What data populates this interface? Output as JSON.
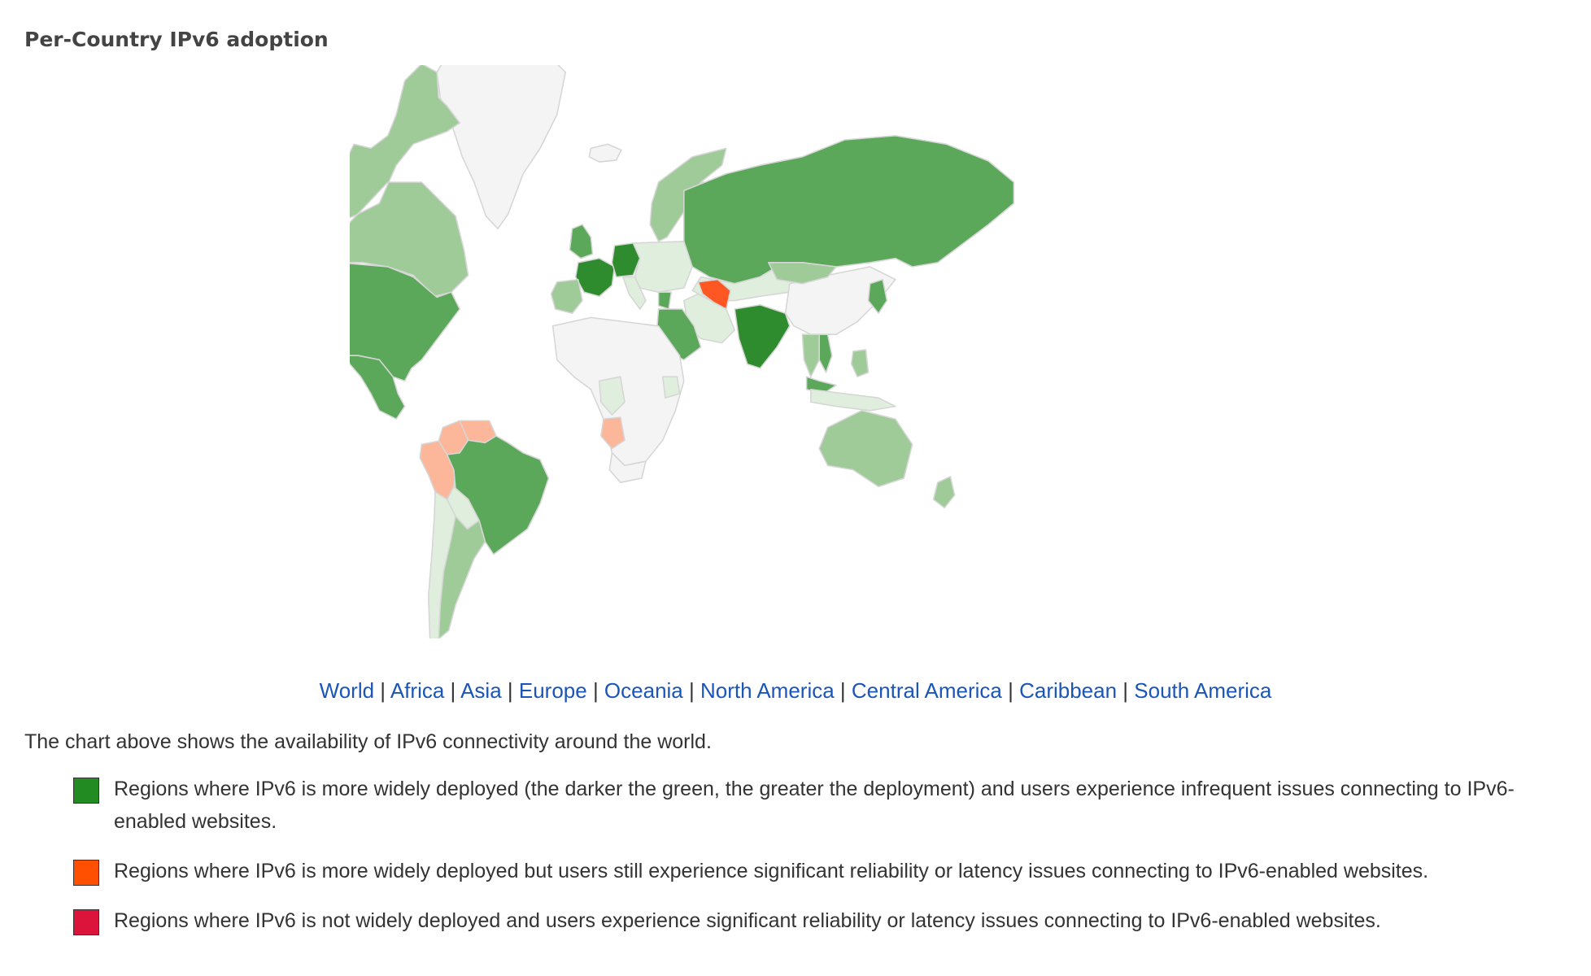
{
  "page": {
    "title": "Per-Country IPv6 adoption"
  },
  "map": {
    "colors": {
      "ocean": "#ffffff",
      "no_data": "#f4f4f4",
      "border": "#d6d6d6",
      "green_low": "#dfeedd",
      "green_mid": "#9fcb98",
      "green_high": "#5ba85a",
      "green_top": "#2e8b2e",
      "orange": "#fe5722",
      "orange_light": "#fcb69a",
      "red": "#dc143c"
    },
    "regions": [
      {
        "name": "Greenland",
        "level": "none"
      },
      {
        "name": "Canada",
        "level": "mid"
      },
      {
        "name": "Alaska",
        "level": "mid"
      },
      {
        "name": "United States",
        "level": "high"
      },
      {
        "name": "Mexico",
        "level": "high"
      },
      {
        "name": "Colombia",
        "level": "orange_light"
      },
      {
        "name": "Venezuela",
        "level": "orange_light"
      },
      {
        "name": "Peru",
        "level": "orange_light"
      },
      {
        "name": "Brazil",
        "level": "high"
      },
      {
        "name": "Bolivia",
        "level": "low"
      },
      {
        "name": "Argentina",
        "level": "mid"
      },
      {
        "name": "Chile",
        "level": "low"
      },
      {
        "name": "Iceland",
        "level": "none"
      },
      {
        "name": "Norway",
        "level": "mid"
      },
      {
        "name": "Sweden",
        "level": "mid"
      },
      {
        "name": "Finland",
        "level": "high"
      },
      {
        "name": "United Kingdom",
        "level": "high"
      },
      {
        "name": "France",
        "level": "top"
      },
      {
        "name": "Germany",
        "level": "top"
      },
      {
        "name": "Spain",
        "level": "mid"
      },
      {
        "name": "Italy",
        "level": "low"
      },
      {
        "name": "Eastern Europe",
        "level": "low"
      },
      {
        "name": "Greece",
        "level": "high"
      },
      {
        "name": "Russia",
        "level": "high"
      },
      {
        "name": "Kazakhstan",
        "level": "low"
      },
      {
        "name": "Turkmenistan",
        "level": "orange"
      },
      {
        "name": "Iran",
        "level": "low"
      },
      {
        "name": "Saudi Arabia",
        "level": "high"
      },
      {
        "name": "India",
        "level": "top"
      },
      {
        "name": "China",
        "level": "none"
      },
      {
        "name": "Mongolia",
        "level": "mid"
      },
      {
        "name": "Japan",
        "level": "high"
      },
      {
        "name": "Vietnam",
        "level": "high"
      },
      {
        "name": "Thailand",
        "level": "mid"
      },
      {
        "name": "Malaysia",
        "level": "high"
      },
      {
        "name": "Indonesia",
        "level": "low"
      },
      {
        "name": "Philippines",
        "level": "mid"
      },
      {
        "name": "Australia",
        "level": "mid"
      },
      {
        "name": "New Zealand",
        "level": "mid"
      },
      {
        "name": "Africa",
        "level": "none"
      },
      {
        "name": "Angola",
        "level": "orange_light"
      },
      {
        "name": "Congo",
        "level": "low"
      },
      {
        "name": "Kenya",
        "level": "low"
      },
      {
        "name": "South Africa",
        "level": "none"
      }
    ]
  },
  "region_links": [
    {
      "label": "World"
    },
    {
      "label": "Africa"
    },
    {
      "label": "Asia"
    },
    {
      "label": "Europe"
    },
    {
      "label": "Oceania"
    },
    {
      "label": "North America"
    },
    {
      "label": "Central America"
    },
    {
      "label": "Caribbean"
    },
    {
      "label": "South America"
    }
  ],
  "description": "The chart above shows the availability of IPv6 connectivity around the world.",
  "legend": [
    {
      "color": "#228b22",
      "text": "Regions where IPv6 is more widely deployed (the darker the green, the greater the deployment) and users experience infrequent issues connecting to IPv6-enabled websites."
    },
    {
      "color": "#fe5000",
      "text": "Regions where IPv6 is more widely deployed but users still experience significant reliability or latency issues connecting to IPv6-enabled websites."
    },
    {
      "color": "#dc143c",
      "text": "Regions where IPv6 is not widely deployed and users experience significant reliability or latency issues connecting to IPv6-enabled websites."
    }
  ]
}
